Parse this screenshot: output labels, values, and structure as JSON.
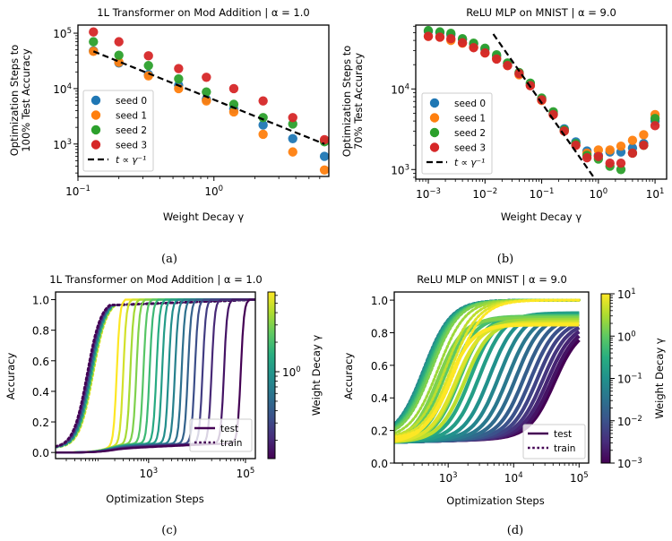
{
  "chart_data": [
    {
      "id": "a",
      "type": "scatter",
      "caption": "(a)",
      "title": "1L Transformer on Mod Addition | α = 1.0",
      "xlabel": "Weight Decay γ",
      "ylabel": [
        "Optimization Steps to",
        "100% Test Accuracy"
      ],
      "xscale": "log",
      "yscale": "log",
      "xlim": [
        0.1,
        7.0
      ],
      "ylim": [
        260,
        140000
      ],
      "xticks": [
        {
          "v": 0.1,
          "label": "10",
          "exp": "−1"
        },
        {
          "v": 1,
          "label": "10",
          "exp": "0"
        }
      ],
      "yticks": [
        {
          "v": 1000,
          "label": "10",
          "exp": "3"
        },
        {
          "v": 10000,
          "label": "10",
          "exp": "4"
        },
        {
          "v": 100000,
          "label": "10",
          "exp": "5"
        }
      ],
      "x": [
        0.13,
        0.2,
        0.33,
        0.55,
        0.88,
        1.4,
        2.3,
        3.8,
        6.5
      ],
      "series": [
        {
          "name": "seed 0",
          "color": "#1f77b4",
          "values": [
            48000,
            29000,
            18000,
            11500,
            6400,
            4300,
            2200,
            1250,
            600
          ]
        },
        {
          "name": "seed 1",
          "color": "#ff7f0e",
          "values": [
            47000,
            30000,
            17000,
            10000,
            6000,
            3800,
            1500,
            720,
            340
          ]
        },
        {
          "name": "seed 2",
          "color": "#2ca02c",
          "values": [
            70000,
            40000,
            26000,
            15000,
            8700,
            5200,
            3000,
            2300,
            1100
          ]
        },
        {
          "name": "seed 3",
          "color": "#d62728",
          "values": [
            105000,
            70000,
            39000,
            23000,
            16000,
            10000,
            6000,
            3000,
            1200
          ]
        }
      ],
      "fit": {
        "name": "t ∝ γ⁻¹",
        "x": [
          0.13,
          6.5
        ],
        "values": [
          47000,
          1000
        ],
        "color": "#000000"
      },
      "legend": {
        "position": "lower-left"
      }
    },
    {
      "id": "b",
      "type": "scatter",
      "caption": "(b)",
      "title": "ReLU MLP on MNIST | α = 9.0",
      "xlabel": "Weight Decay γ",
      "ylabel": [
        "Optimization Steps to",
        "70% Test Accuracy"
      ],
      "xscale": "log",
      "yscale": "log",
      "xlim": [
        0.0006,
        16
      ],
      "ylim": [
        760,
        62000
      ],
      "xticks": [
        {
          "v": 0.001,
          "label": "10",
          "exp": "−3"
        },
        {
          "v": 0.01,
          "label": "10",
          "exp": "−2"
        },
        {
          "v": 0.1,
          "label": "10",
          "exp": "−1"
        },
        {
          "v": 1,
          "label": "10",
          "exp": "0"
        },
        {
          "v": 10,
          "label": "10",
          "exp": "1"
        }
      ],
      "yticks": [
        {
          "v": 1000,
          "label": "10",
          "exp": "3"
        },
        {
          "v": 10000,
          "label": "10",
          "exp": "4"
        }
      ],
      "x": [
        0.001,
        0.0016,
        0.0025,
        0.004,
        0.0063,
        0.01,
        0.016,
        0.025,
        0.04,
        0.063,
        0.1,
        0.16,
        0.25,
        0.4,
        0.63,
        1.0,
        1.6,
        2.5,
        4.0,
        6.3,
        10.0
      ],
      "series": [
        {
          "name": "seed 0",
          "color": "#1f77b4",
          "values": [
            52000,
            50000,
            47000,
            41000,
            36000,
            31000,
            25500,
            20500,
            15500,
            11500,
            7500,
            5000,
            3200,
            2200,
            1700,
            1500,
            1650,
            1650,
            1850,
            2100,
            4000
          ]
        },
        {
          "name": "seed 1",
          "color": "#ff7f0e",
          "values": [
            45000,
            44000,
            40000,
            37000,
            33000,
            28000,
            24000,
            19500,
            15000,
            11000,
            7200,
            4800,
            3000,
            2000,
            1600,
            1750,
            1750,
            1950,
            2300,
            2700,
            4800
          ]
        },
        {
          "name": "seed 2",
          "color": "#2ca02c",
          "values": [
            53000,
            51000,
            49000,
            42000,
            37000,
            32000,
            26500,
            21000,
            16000,
            11800,
            7700,
            5200,
            3100,
            2100,
            1500,
            1350,
            1100,
            1000,
            1600,
            2000,
            4300
          ]
        },
        {
          "name": "seed 3",
          "color": "#d62728",
          "values": [
            45000,
            44000,
            42000,
            37500,
            32500,
            28000,
            23500,
            19500,
            15500,
            11000,
            7300,
            4800,
            3000,
            2000,
            1400,
            1450,
            1200,
            1200,
            1600,
            2000,
            3500
          ]
        }
      ],
      "fit": {
        "name": "t ∝ γ⁻¹",
        "x": [
          0.014,
          0.95
        ],
        "values": [
          48000,
          700
        ],
        "color": "#000000"
      },
      "legend": {
        "position": "lower-left"
      }
    },
    {
      "id": "c",
      "type": "line",
      "caption": "(c)",
      "title": "1L Transformer on Mod Addition | α = 1.0",
      "xlabel": "Optimization Steps",
      "ylabel": "Accuracy",
      "xscale": "log",
      "xlim": [
        12,
        160000
      ],
      "ylim": [
        -0.04,
        1.05
      ],
      "xticks": [
        {
          "v": 1000,
          "label": "10",
          "exp": "3"
        },
        {
          "v": 100000,
          "label": "10",
          "exp": "5"
        }
      ],
      "yticks": [
        {
          "v": 0.0,
          "label": "0.0"
        },
        {
          "v": 0.2,
          "label": "0.2"
        },
        {
          "v": 0.4,
          "label": "0.4"
        },
        {
          "v": 0.6,
          "label": "0.6"
        },
        {
          "v": 0.8,
          "label": "0.8"
        },
        {
          "v": 1.0,
          "label": "1.0"
        }
      ],
      "colorbar": {
        "label": "Weight Decay γ",
        "scale": "log",
        "range": [
          0.13,
          6.5
        ],
        "ticks": [
          {
            "v": 1,
            "label": "10",
            "exp": "0"
          }
        ],
        "colormap": "viridis"
      },
      "runs": {
        "weight_decay": [
          6.5,
          5.0,
          3.8,
          3.0,
          2.3,
          1.8,
          1.4,
          1.1,
          0.88,
          0.7,
          0.55,
          0.44,
          0.33,
          0.26,
          0.2,
          0.16,
          0.13
        ],
        "test_grok_step": [
          220,
          300,
          420,
          560,
          780,
          1050,
          1450,
          1900,
          2600,
          3500,
          4800,
          6500,
          9000,
          13000,
          20000,
          36000,
          80000
        ],
        "train_fit_step": [
          130,
          128,
          126,
          124,
          122,
          120,
          118,
          116,
          114,
          112,
          110,
          108,
          106,
          104,
          102,
          100,
          98
        ]
      },
      "legend": {
        "position": "lower-right",
        "entries": [
          {
            "name": "test",
            "style": "solid"
          },
          {
            "name": "train",
            "style": "dotted"
          }
        ]
      }
    },
    {
      "id": "d",
      "type": "line",
      "caption": "(d)",
      "title": "ReLU MLP on MNIST | α = 9.0",
      "xlabel": "Optimization Steps",
      "ylabel": "Accuracy",
      "xscale": "log",
      "xlim": [
        150,
        140000
      ],
      "ylim": [
        0.0,
        1.05
      ],
      "xticks": [
        {
          "v": 1000,
          "label": "10",
          "exp": "3"
        },
        {
          "v": 10000,
          "label": "10",
          "exp": "4"
        },
        {
          "v": 100000,
          "label": "10",
          "exp": "5"
        }
      ],
      "yticks": [
        {
          "v": 0.0,
          "label": "0.0"
        },
        {
          "v": 0.2,
          "label": "0.2"
        },
        {
          "v": 0.4,
          "label": "0.4"
        },
        {
          "v": 0.6,
          "label": "0.6"
        },
        {
          "v": 0.8,
          "label": "0.8"
        },
        {
          "v": 1.0,
          "label": "1.0"
        }
      ],
      "colorbar": {
        "label": "Weight Decay γ",
        "scale": "log",
        "range": [
          0.001,
          10
        ],
        "ticks": [
          {
            "v": 0.001,
            "label": "10",
            "exp": "−3"
          },
          {
            "v": 0.01,
            "label": "10",
            "exp": "−2"
          },
          {
            "v": 0.1,
            "label": "10",
            "exp": "−1"
          },
          {
            "v": 1,
            "label": "10",
            "exp": "0"
          },
          {
            "v": 10,
            "label": "10",
            "exp": "1"
          }
        ],
        "colormap": "viridis"
      },
      "runs": {
        "weight_decay": [
          0.001,
          0.0016,
          0.0025,
          0.004,
          0.0063,
          0.01,
          0.016,
          0.025,
          0.04,
          0.063,
          0.1,
          0.16,
          0.25,
          0.4,
          0.63,
          1.0,
          1.6,
          2.5,
          4.0,
          6.3,
          10.0
        ],
        "test_mid_step": [
          42000,
          38000,
          33000,
          28000,
          23000,
          18500,
          14500,
          11000,
          8200,
          6000,
          4300,
          3000,
          2200,
          1500,
          1100,
          850,
          700,
          1400,
          1800,
          1300,
          1000
        ],
        "test_final": [
          0.84,
          0.85,
          0.86,
          0.87,
          0.88,
          0.89,
          0.9,
          0.91,
          0.91,
          0.92,
          0.92,
          0.92,
          0.91,
          0.9,
          0.9,
          0.9,
          0.89,
          0.88,
          0.87,
          0.86,
          0.85
        ],
        "train_mid_step": [
          500,
          480,
          470,
          460,
          450,
          440,
          430,
          420,
          420,
          420,
          430,
          440,
          460,
          480,
          500,
          520,
          560,
          700,
          900,
          1100,
          1300
        ]
      },
      "legend": {
        "position": "lower-right",
        "entries": [
          {
            "name": "test",
            "style": "solid"
          },
          {
            "name": "train",
            "style": "dotted"
          }
        ]
      }
    }
  ]
}
